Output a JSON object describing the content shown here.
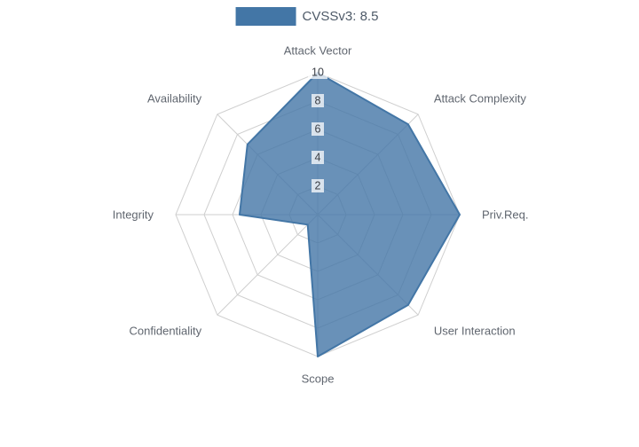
{
  "chart_data": {
    "type": "radar",
    "title": "",
    "legend": "CVSSv3: 8.5",
    "legend_position": "top",
    "axes": [
      "Attack Vector",
      "Attack Complexity",
      "Priv.Req.",
      "User Interaction",
      "Scope",
      "Confidentiality",
      "Integrity",
      "Availability"
    ],
    "values": [
      10,
      9,
      10,
      9,
      10,
      1,
      5.5,
      7
    ],
    "ticks": [
      2,
      4,
      6,
      8,
      10
    ],
    "max": 10,
    "grid": true,
    "fill_color": "#4376A6",
    "fill_opacity": 0.8,
    "grid_color": "#CFCFCF",
    "axis_label_color": "#60666F",
    "tick_label_color": "#3B3F46",
    "legend_text_color": "#4E5A68"
  }
}
